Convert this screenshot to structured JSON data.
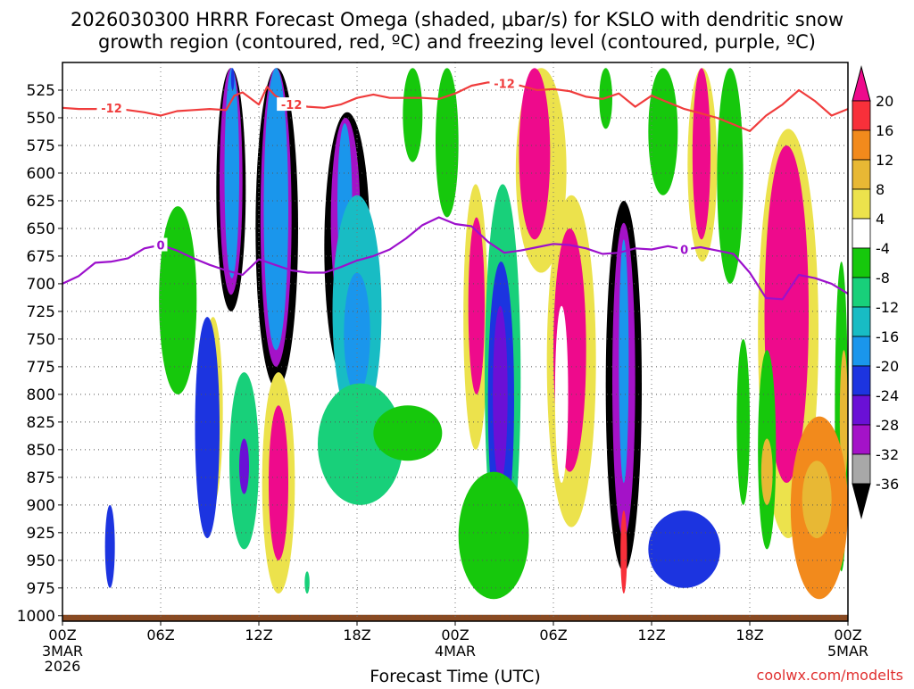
{
  "chart_data": {
    "type": "heatmap",
    "title_line1": "2026030300 HRRR Forecast Omega (shaded, μbar/s) for KSLO with dendritic snow",
    "title_line2": "growth region (contoured, red, ºC) and freezing level (contoured, purple, ºC)",
    "xlabel": "Forecast Time (UTC)",
    "credit": "coolwx.com/modelts",
    "x_range_hours": [
      0,
      48
    ],
    "y_range_mb": [
      500,
      1005
    ],
    "y_ticks": [
      525,
      550,
      575,
      600,
      625,
      650,
      675,
      700,
      725,
      750,
      775,
      800,
      825,
      850,
      875,
      900,
      925,
      950,
      975,
      1000
    ],
    "x_ticks": [
      {
        "hour": 0,
        "label": "00Z",
        "sub1": "3MAR",
        "sub2": "2026"
      },
      {
        "hour": 6,
        "label": "06Z",
        "sub1": "",
        "sub2": ""
      },
      {
        "hour": 12,
        "label": "12Z",
        "sub1": "",
        "sub2": ""
      },
      {
        "hour": 18,
        "label": "18Z",
        "sub1": "",
        "sub2": ""
      },
      {
        "hour": 24,
        "label": "00Z",
        "sub1": "4MAR",
        "sub2": ""
      },
      {
        "hour": 30,
        "label": "06Z",
        "sub1": "",
        "sub2": ""
      },
      {
        "hour": 36,
        "label": "12Z",
        "sub1": "",
        "sub2": ""
      },
      {
        "hour": 42,
        "label": "18Z",
        "sub1": "",
        "sub2": ""
      },
      {
        "hour": 48,
        "label": "00Z",
        "sub1": "5MAR",
        "sub2": ""
      }
    ],
    "colorbar": {
      "labels": [
        "20",
        "16",
        "12",
        "8",
        "4",
        "-4",
        "-8",
        "-12",
        "-16",
        "-20",
        "-24",
        "-28",
        "-32",
        "-36"
      ],
      "colors": [
        "#ee0a8c",
        "#f8303a",
        "#f28a1c",
        "#e8b834",
        "#ece24c",
        "#ffffff",
        "#16c80c",
        "#18d07a",
        "#18bcc4",
        "#1a96ec",
        "#1c34e0",
        "#6a10d6",
        "#a412c8",
        "#a8a8a8",
        "#000000"
      ]
    },
    "contour_minus12": {
      "label": "-12",
      "color": "#f03c3c",
      "hours": [
        0,
        1,
        2,
        3,
        4,
        5,
        6,
        7,
        8,
        9,
        10,
        10.5,
        11,
        12,
        12.5,
        13,
        14,
        15,
        16,
        17,
        18,
        19,
        20,
        21,
        22,
        23,
        24,
        25,
        26,
        27,
        28,
        29,
        30,
        31,
        32,
        33,
        34,
        35,
        36,
        37,
        38,
        39,
        40,
        41,
        42,
        43,
        44,
        45,
        46,
        47,
        48
      ],
      "mb": [
        541,
        542,
        542,
        541,
        543,
        545,
        548,
        544,
        543,
        542,
        543,
        530,
        527,
        538,
        522,
        530,
        538,
        540,
        541,
        538,
        532,
        529,
        532,
        532,
        532,
        533,
        528,
        521,
        518,
        519,
        521,
        525,
        524,
        526,
        531,
        533,
        528,
        540,
        530,
        536,
        542,
        546,
        550,
        556,
        562,
        548,
        538,
        525,
        535,
        548,
        542
      ],
      "labels_at_hours": [
        3,
        14,
        27
      ]
    },
    "contour_zero": {
      "label": "0",
      "color": "#9c10cc",
      "hours": [
        0,
        1,
        2,
        3,
        4,
        5,
        6,
        7,
        8,
        9,
        10,
        11,
        12,
        13,
        14,
        15,
        16,
        17,
        18,
        19,
        20,
        21,
        22,
        23,
        24,
        25,
        26,
        27,
        28,
        29,
        30,
        31,
        32,
        33,
        34,
        35,
        36,
        37,
        38,
        39,
        40,
        41,
        42,
        43,
        44,
        45,
        46,
        47,
        48
      ],
      "mb": [
        700,
        693,
        681,
        680,
        677,
        668,
        665,
        670,
        677,
        683,
        688,
        692,
        678,
        683,
        688,
        690,
        690,
        685,
        679,
        675,
        669,
        659,
        647,
        640,
        646,
        648,
        662,
        672,
        670,
        667,
        664,
        665,
        668,
        673,
        672,
        668,
        669,
        666,
        669,
        667,
        670,
        673,
        690,
        713,
        714,
        692,
        695,
        700,
        709
      ],
      "labels_at_hours": [
        6,
        38
      ]
    },
    "shading_cells": [
      {
        "t0": 9.4,
        "t1": 11.2,
        "p0": 505,
        "p1": 725,
        "level": 0
      },
      {
        "t0": 9.6,
        "t1": 11.0,
        "p0": 505,
        "p1": 710,
        "level": 2
      },
      {
        "t0": 9.9,
        "t1": 10.8,
        "p0": 505,
        "p1": 695,
        "level": 5
      },
      {
        "t0": 10.3,
        "t1": 10.5,
        "p0": 505,
        "p1": 525,
        "level": 4
      },
      {
        "t0": 11.8,
        "t1": 14.4,
        "p0": 505,
        "p1": 795,
        "level": 0
      },
      {
        "t0": 12.1,
        "t1": 14.0,
        "p0": 505,
        "p1": 775,
        "level": 2
      },
      {
        "t0": 12.3,
        "t1": 13.8,
        "p0": 505,
        "p1": 760,
        "level": 5
      },
      {
        "t0": 16.0,
        "t1": 18.8,
        "p0": 545,
        "p1": 790,
        "level": 0
      },
      {
        "t0": 16.4,
        "t1": 18.2,
        "p0": 550,
        "p1": 735,
        "level": 2
      },
      {
        "t0": 16.8,
        "t1": 17.7,
        "p0": 555,
        "p1": 700,
        "level": 5
      },
      {
        "t0": 33.2,
        "t1": 35.4,
        "p0": 625,
        "p1": 960,
        "level": 0
      },
      {
        "t0": 33.6,
        "t1": 35.0,
        "p0": 645,
        "p1": 930,
        "level": 2
      },
      {
        "t0": 34.0,
        "t1": 34.6,
        "p0": 660,
        "p1": 880,
        "level": 5
      },
      {
        "t0": 27.7,
        "t1": 30.8,
        "p0": 505,
        "p1": 690,
        "level": 10
      },
      {
        "t0": 27.9,
        "t1": 29.8,
        "p0": 505,
        "p1": 660,
        "level": 14
      },
      {
        "t0": 38.2,
        "t1": 40.0,
        "p0": 505,
        "p1": 680,
        "level": 10
      },
      {
        "t0": 38.5,
        "t1": 39.6,
        "p0": 505,
        "p1": 660,
        "level": 14
      },
      {
        "t0": 42.5,
        "t1": 46.2,
        "p0": 560,
        "p1": 930,
        "level": 10
      },
      {
        "t0": 42.9,
        "t1": 45.6,
        "p0": 575,
        "p1": 880,
        "level": 14
      },
      {
        "t0": 29.6,
        "t1": 32.6,
        "p0": 620,
        "p1": 920,
        "level": 10
      },
      {
        "t0": 30.0,
        "t1": 32.0,
        "p0": 650,
        "p1": 870,
        "level": 14
      },
      {
        "t0": 24.5,
        "t1": 26.0,
        "p0": 610,
        "p1": 850,
        "level": 10
      },
      {
        "t0": 24.8,
        "t1": 25.8,
        "p0": 640,
        "p1": 800,
        "level": 14
      },
      {
        "t0": 12.2,
        "t1": 14.2,
        "p0": 780,
        "p1": 980,
        "level": 10
      },
      {
        "t0": 12.6,
        "t1": 13.8,
        "p0": 810,
        "p1": 950,
        "level": 14
      },
      {
        "t0": 8.6,
        "t1": 9.8,
        "p0": 730,
        "p1": 900,
        "level": 10
      },
      {
        "t0": 8.9,
        "t1": 9.5,
        "p0": 760,
        "p1": 860,
        "level": 13
      },
      {
        "t0": 25.8,
        "t1": 28.0,
        "p0": 610,
        "p1": 960,
        "level": 7
      },
      {
        "t0": 26.0,
        "t1": 27.6,
        "p0": 680,
        "p1": 930,
        "level": 4
      },
      {
        "t0": 26.3,
        "t1": 27.2,
        "p0": 720,
        "p1": 880,
        "level": 3
      },
      {
        "t0": 16.5,
        "t1": 19.5,
        "p0": 620,
        "p1": 830,
        "level": 6
      },
      {
        "t0": 17.2,
        "t1": 18.8,
        "p0": 690,
        "p1": 800,
        "level": 5
      },
      {
        "t0": 10.2,
        "t1": 12.0,
        "p0": 780,
        "p1": 940,
        "level": 7
      },
      {
        "t0": 10.8,
        "t1": 11.4,
        "p0": 840,
        "p1": 890,
        "level": 3
      },
      {
        "t0": 15.6,
        "t1": 20.8,
        "p0": 790,
        "p1": 900,
        "level": 7
      },
      {
        "t0": 19.0,
        "t1": 23.2,
        "p0": 810,
        "p1": 860,
        "level": 8
      },
      {
        "t0": 5.9,
        "t1": 8.2,
        "p0": 630,
        "p1": 800,
        "level": 8
      },
      {
        "t0": 24.2,
        "t1": 28.5,
        "p0": 870,
        "p1": 985,
        "level": 8
      },
      {
        "t0": 20.8,
        "t1": 22.0,
        "p0": 505,
        "p1": 590,
        "level": 8
      },
      {
        "t0": 22.8,
        "t1": 24.2,
        "p0": 505,
        "p1": 640,
        "level": 8
      },
      {
        "t0": 32.8,
        "t1": 33.6,
        "p0": 505,
        "p1": 560,
        "level": 8
      },
      {
        "t0": 35.8,
        "t1": 37.6,
        "p0": 505,
        "p1": 620,
        "level": 8
      },
      {
        "t0": 40.0,
        "t1": 41.6,
        "p0": 505,
        "p1": 700,
        "level": 8
      },
      {
        "t0": 41.2,
        "t1": 42.0,
        "p0": 750,
        "p1": 900,
        "level": 8
      },
      {
        "t0": 42.5,
        "t1": 43.6,
        "p0": 760,
        "p1": 940,
        "level": 8
      },
      {
        "t0": 42.7,
        "t1": 43.4,
        "p0": 840,
        "p1": 900,
        "level": 11
      },
      {
        "t0": 30.1,
        "t1": 30.9,
        "p0": 720,
        "p1": 880,
        "level": 9
      },
      {
        "t0": 34.1,
        "t1": 34.5,
        "p0": 905,
        "p1": 980,
        "level": 13
      },
      {
        "t0": 47.2,
        "t1": 48.0,
        "p0": 680,
        "p1": 960,
        "level": 8
      },
      {
        "t0": 47.5,
        "t1": 48.0,
        "p0": 760,
        "p1": 880,
        "level": 11
      },
      {
        "t0": 14.8,
        "t1": 15.1,
        "p0": 960,
        "p1": 980,
        "level": 7
      },
      {
        "t0": 2.6,
        "t1": 3.2,
        "p0": 900,
        "p1": 975,
        "level": 4
      },
      {
        "t0": 44.5,
        "t1": 48.0,
        "p0": 820,
        "p1": 985,
        "level": 12
      },
      {
        "t0": 45.2,
        "t1": 47.0,
        "p0": 860,
        "p1": 930,
        "level": 11
      },
      {
        "t0": 35.8,
        "t1": 40.2,
        "p0": 905,
        "p1": 975,
        "level": 4
      },
      {
        "t0": 8.1,
        "t1": 9.6,
        "p0": 730,
        "p1": 930,
        "level": 4
      }
    ]
  }
}
